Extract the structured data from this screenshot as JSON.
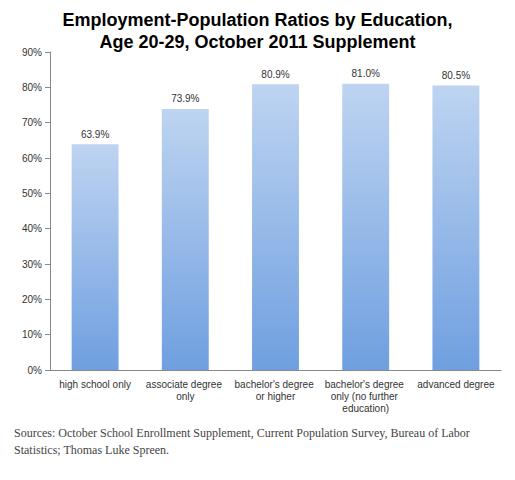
{
  "chart_data": {
    "type": "bar",
    "title": "Employment-Population Ratios by Education,\nAge 20-29, October 2011 Supplement",
    "categories": [
      "high school only",
      "associate degree only",
      "bachelor's degree or higher",
      "bachelor's degree only (no further education)",
      "advanced degree"
    ],
    "values": [
      63.9,
      73.9,
      80.9,
      81.0,
      80.5
    ],
    "value_labels": [
      "63.9%",
      "73.9%",
      "80.9%",
      "81.0%",
      "80.5%"
    ],
    "data_labels": true,
    "color": "#6f9fe0",
    "ylim": [
      0,
      90
    ],
    "yticks": [
      {
        "value": 0,
        "label": "0%"
      },
      {
        "value": 10,
        "label": "10%"
      },
      {
        "value": 20,
        "label": "20%"
      },
      {
        "value": 30,
        "label": "30%"
      },
      {
        "value": 40,
        "label": "40%"
      },
      {
        "value": 50,
        "label": "50%"
      },
      {
        "value": 60,
        "label": "60%"
      },
      {
        "value": 70,
        "label": "70%"
      },
      {
        "value": 80,
        "label": "80%"
      },
      {
        "value": 90,
        "label": "90%"
      }
    ],
    "grid": false,
    "annotations": [
      "Sources: October School Enrollment Supplement, Current Population Survey, Bureau of Labor Statistics; Thomas Luke Spreen."
    ]
  }
}
